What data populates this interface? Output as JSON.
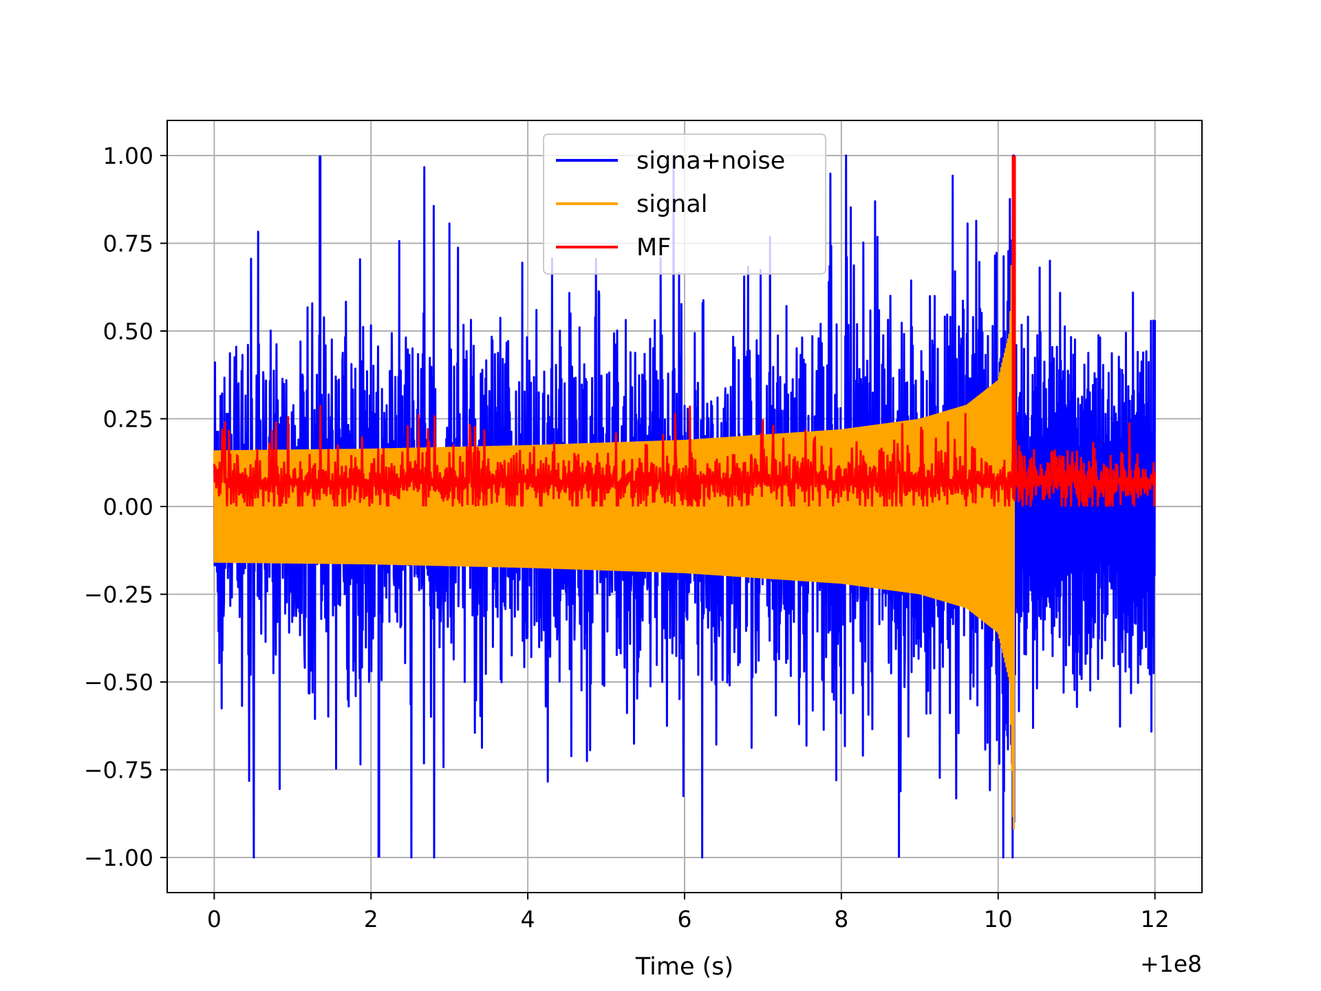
{
  "chart_data": {
    "type": "line",
    "title": "",
    "xlabel": "Time (s)",
    "ylabel": "",
    "x_offset_label": "+1e8",
    "xlim": [
      -0.6,
      12.6
    ],
    "ylim": [
      -1.1,
      1.1
    ],
    "xticks": [
      0,
      2,
      4,
      6,
      8,
      10,
      12
    ],
    "xtick_labels": [
      "0",
      "2",
      "4",
      "6",
      "8",
      "10",
      "12"
    ],
    "yticks": [
      1.0,
      0.75,
      0.5,
      0.25,
      0.0,
      -0.25,
      -0.5,
      -0.75,
      -1.0
    ],
    "ytick_labels": [
      "1.00",
      "0.75",
      "0.50",
      "0.25",
      "0.00",
      "−0.25",
      "−0.50",
      "−0.75",
      "−1.00"
    ],
    "grid": true,
    "legend_position": "top-center",
    "series": [
      {
        "name": "signa+noise",
        "color": "#0000ff",
        "x_range": [
          0,
          12
        ],
        "description_points": {
          "x": [
            0,
            1.35,
            2.1,
            10.2,
            12
          ],
          "y": [
            0.0,
            1.0,
            -1.0,
            -0.9,
            0.0
          ]
        },
        "y_range": [
          -1.0,
          1.0
        ]
      },
      {
        "name": "signal",
        "color": "#ffa500",
        "x_range": [
          0,
          10.2
        ],
        "envelope": {
          "x": [
            0,
            2,
            4,
            6,
            8,
            9,
            9.6,
            10.0,
            10.15,
            10.2
          ],
          "amp": [
            0.16,
            0.165,
            0.175,
            0.19,
            0.22,
            0.25,
            0.29,
            0.36,
            0.5,
            0.95
          ]
        }
      },
      {
        "name": "MF",
        "color": "#ff0000",
        "x_range": [
          0,
          12
        ],
        "baseline": 0.07,
        "peak": {
          "x": 10.2,
          "y": 1.0
        }
      }
    ]
  }
}
